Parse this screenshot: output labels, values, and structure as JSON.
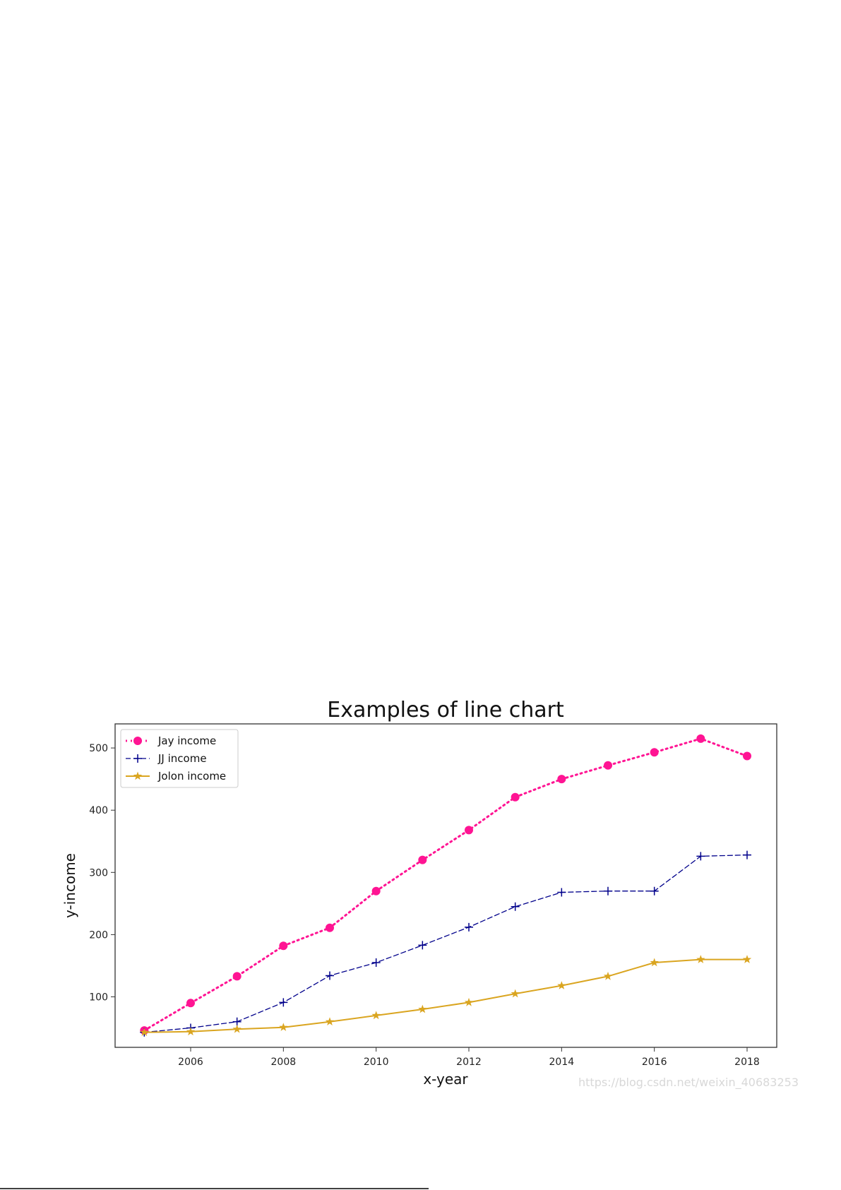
{
  "chart_data": {
    "type": "line",
    "title": "Examples of line chart",
    "xlabel": "x-year",
    "ylabel": "y-income",
    "x": [
      2005,
      2006,
      2007,
      2008,
      2009,
      2010,
      2011,
      2012,
      2013,
      2014,
      2015,
      2016,
      2017,
      2018
    ],
    "xticks": [
      "2006",
      "2008",
      "2010",
      "2012",
      "2014",
      "2016",
      "2018"
    ],
    "yticks": [
      "100",
      "200",
      "300",
      "400",
      "500"
    ],
    "xlim": [
      2004.4,
      2018.6
    ],
    "ylim": [
      20,
      540
    ],
    "grid": false,
    "legend_position": "top-left",
    "series": [
      {
        "name": "Jay income",
        "color": "#ff1493",
        "style": "dotted",
        "marker": "circle",
        "values": [
          46,
          90,
          133,
          182,
          211,
          270,
          320,
          368,
          421,
          450,
          472,
          493,
          515,
          487
        ]
      },
      {
        "name": "JJ income",
        "color": "#00008b",
        "style": "dashed",
        "marker": "plus",
        "values": [
          43,
          50,
          60,
          91,
          134,
          155,
          183,
          212,
          245,
          268,
          270,
          270,
          326,
          328
        ]
      },
      {
        "name": "Jolon income",
        "color": "#daa520",
        "style": "solid",
        "marker": "star",
        "values": [
          43,
          44,
          48,
          51,
          60,
          70,
          80,
          91,
          105,
          118,
          133,
          155,
          160,
          160
        ]
      }
    ]
  },
  "watermark": "https://blog.csdn.net/weixin_40683253"
}
